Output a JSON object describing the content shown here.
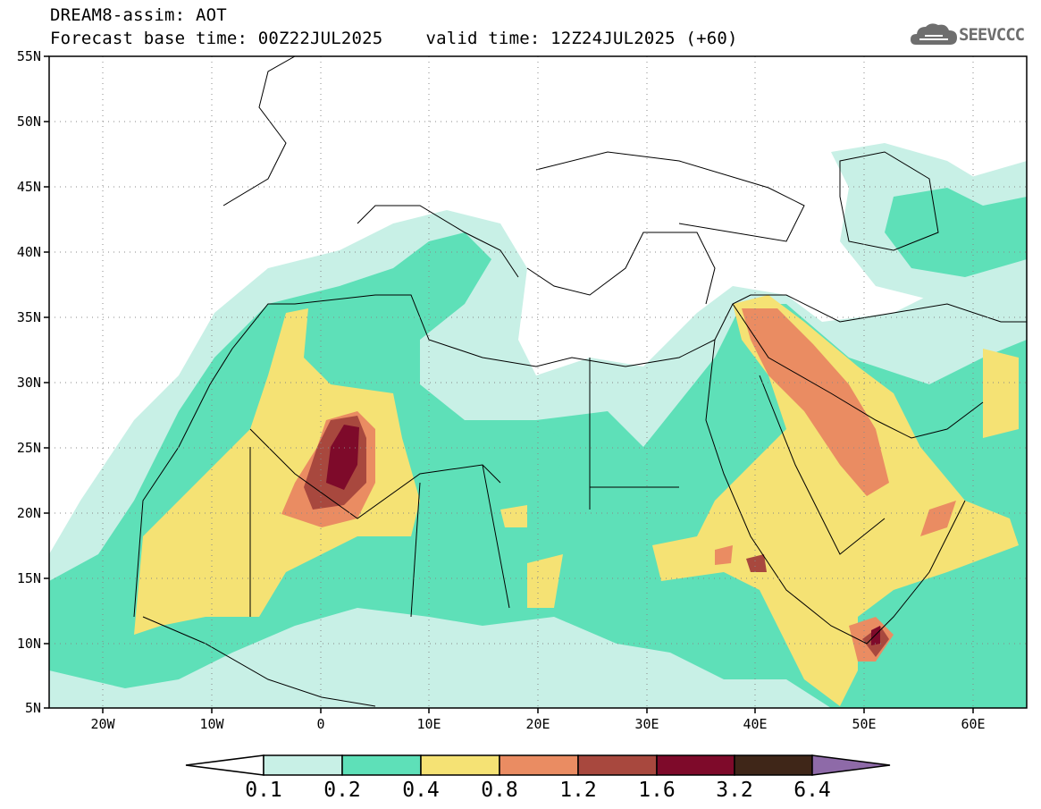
{
  "header": {
    "title_line1": "DREAM8-assim: AOT",
    "forecast_label": "Forecast base time: 00Z22JUL2025",
    "valid_label": "valid time: 12Z24JUL2025 (+60)"
  },
  "logo": {
    "text": "SEEVCCC",
    "icon": "cloud-icon"
  },
  "map": {
    "lon_range": [
      -25,
      65
    ],
    "lat_range": [
      5,
      55
    ],
    "lat_labels": [
      "55N",
      "50N",
      "45N",
      "40N",
      "35N",
      "30N",
      "25N",
      "20N",
      "15N",
      "10N",
      "5N"
    ],
    "lon_labels": [
      "20W",
      "10W",
      "0",
      "10E",
      "20E",
      "30E",
      "40E",
      "50E",
      "60E"
    ]
  },
  "colorbar": {
    "labels": [
      "0.1",
      "0.2",
      "0.4",
      "0.8",
      "1.2",
      "1.6",
      "3.2",
      "6.4"
    ],
    "colors": [
      "#ffffff",
      "#c8f0e6",
      "#5ee0b8",
      "#f5e274",
      "#ea8c62",
      "#a8483e",
      "#7e0a2a",
      "#3f2618",
      "#8e6aa8"
    ]
  }
}
